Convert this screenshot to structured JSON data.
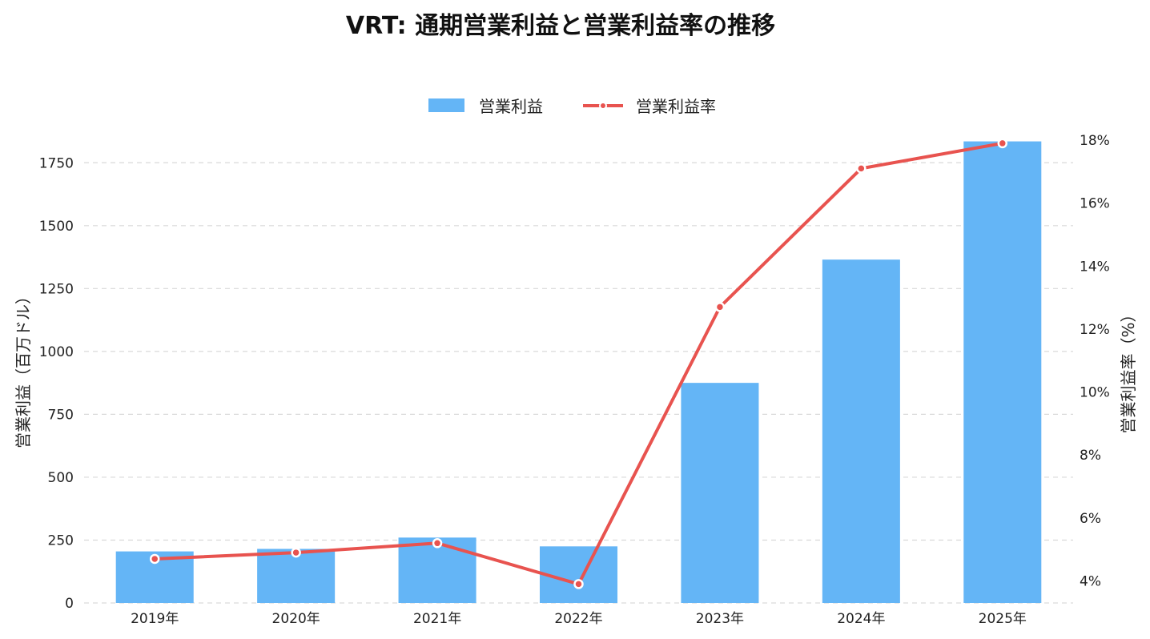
{
  "chart_data": {
    "type": "bar",
    "title": "VRT: 通期営業利益と営業利益率の推移",
    "categories": [
      "2019年",
      "2020年",
      "2021年",
      "2022年",
      "2023年",
      "2024年",
      "2025年"
    ],
    "series": [
      {
        "name": "営業利益",
        "type": "bar",
        "axis": "left",
        "values": [
          205,
          215,
          260,
          225,
          875,
          1365,
          1835
        ]
      },
      {
        "name": "営業利益率",
        "type": "line",
        "axis": "right",
        "values": [
          4.7,
          4.9,
          5.2,
          3.9,
          12.7,
          17.1,
          17.9
        ]
      }
    ],
    "y_left": {
      "label": "営業利益（百万ドル）",
      "range": [
        0,
        1840
      ],
      "ticks": [
        0,
        250,
        500,
        750,
        1000,
        1250,
        1500,
        1750
      ]
    },
    "y_right": {
      "label": "営業利益率（%）",
      "range": [
        3.3,
        18.0
      ],
      "ticks": [
        4,
        6,
        8,
        10,
        12,
        14,
        16,
        18
      ],
      "tick_suffix": "%"
    },
    "grid": true,
    "legend_position": "top-center",
    "colors": {
      "bar": "#64b5f6",
      "line": "#e8534f"
    }
  }
}
